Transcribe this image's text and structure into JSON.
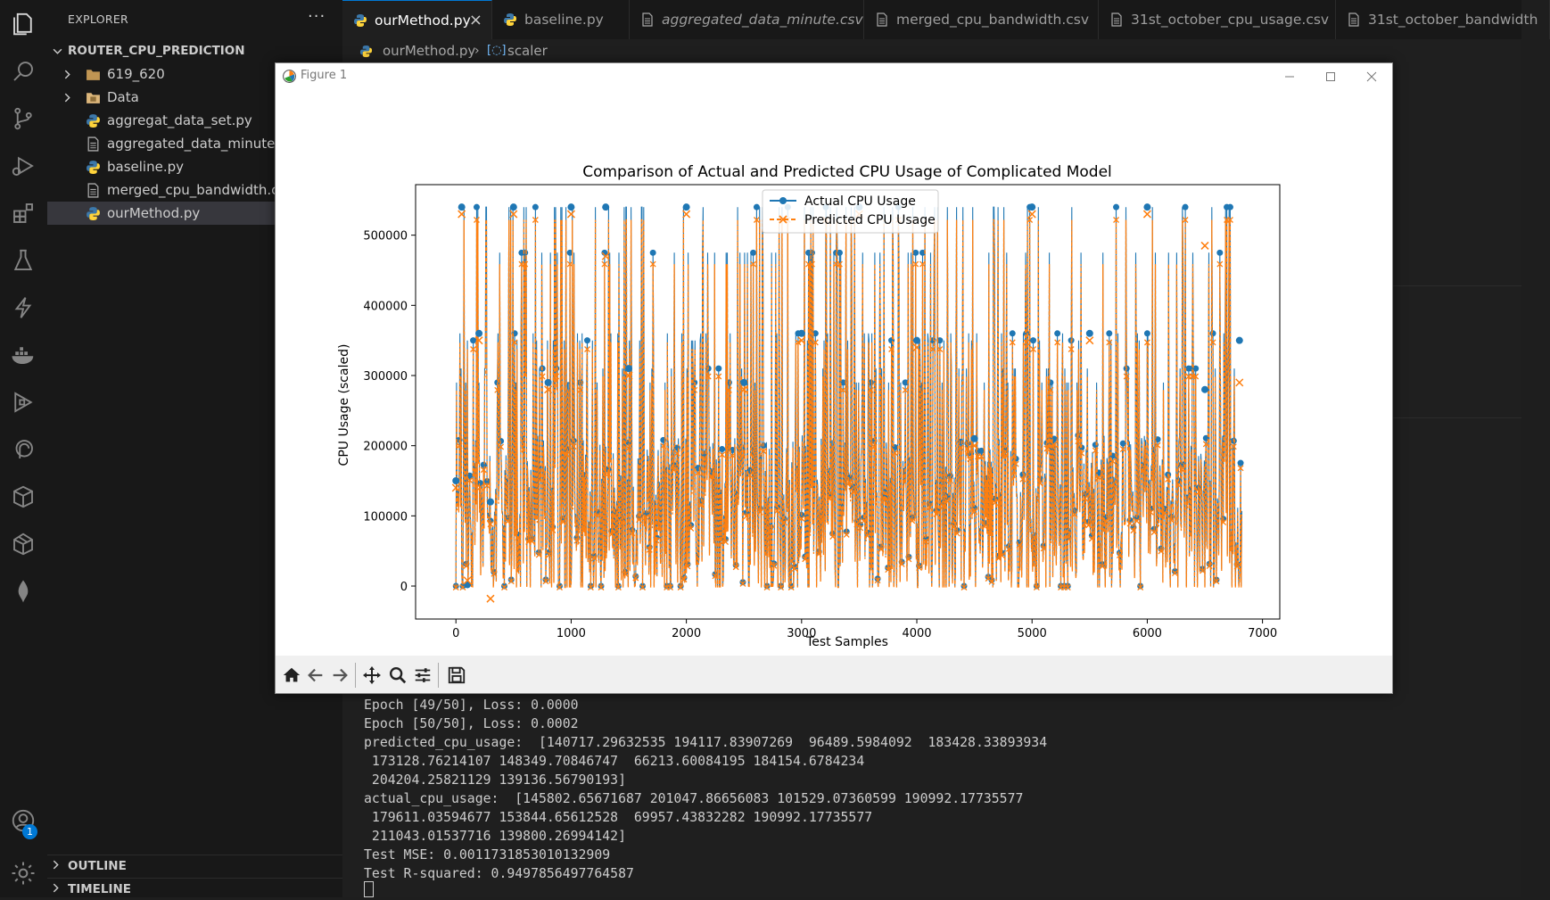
{
  "explorer": {
    "title": "EXPLORER",
    "more": "···",
    "project": "ROUTER_CPU_PREDICTION",
    "items": [
      {
        "label": "619_620",
        "kind": "folder"
      },
      {
        "label": "Data",
        "kind": "folder"
      },
      {
        "label": "aggregat_data_set.py",
        "kind": "python"
      },
      {
        "label": "aggregated_data_minute.csv",
        "kind": "file"
      },
      {
        "label": "baseline.py",
        "kind": "python"
      },
      {
        "label": "merged_cpu_bandwidth.csv",
        "kind": "file"
      },
      {
        "label": "ourMethod.py",
        "kind": "python"
      }
    ],
    "outline": "OUTLINE",
    "timeline": "TIMELINE"
  },
  "activity": {
    "badge": "1"
  },
  "tabs": [
    {
      "label": "ourMethod.py",
      "kind": "python",
      "active": true
    },
    {
      "label": "baseline.py",
      "kind": "python"
    },
    {
      "label": "aggregated_data_minute.csv",
      "kind": "file",
      "italic": true
    },
    {
      "label": "merged_cpu_bandwidth.csv",
      "kind": "file"
    },
    {
      "label": "31st_october_cpu_usage.csv",
      "kind": "file"
    },
    {
      "label": "31st_october_bandwidth",
      "kind": "file"
    }
  ],
  "breadcrumb": {
    "file": "ourMethod.py",
    "symbol": "scaler"
  },
  "terminal": {
    "lines": [
      "Epoch [49/50], Loss: 0.0000",
      "Epoch [50/50], Loss: 0.0002",
      "predicted_cpu_usage:  [140717.29632535 194117.83907269  96489.5984092  183428.33893934",
      " 173128.76214107 148349.70846747  66213.60084195 184154.6784234",
      " 204204.25821129 139136.56790193]",
      "actual_cpu_usage:  [145802.65671687 201047.86656083 101529.07360599 190992.17735577",
      " 179611.03594677 153844.65612528  69957.43832282 190992.17735577",
      " 211043.01537716 139800.26994142]",
      "Test MSE: 0.0011731853010132909",
      "Test R-squared: 0.9497856497764587"
    ]
  },
  "figure": {
    "window_title": "Figure 1"
  },
  "chart_data": {
    "type": "line",
    "title": "Comparison of Actual and Predicted CPU Usage of Complicated Model",
    "xlabel": "Test Samples",
    "ylabel": "CPU Usage (scaled)",
    "xlim": [
      -350,
      7150
    ],
    "ylim": [
      -47000,
      572000
    ],
    "xticks": [
      0,
      1000,
      2000,
      3000,
      4000,
      5000,
      6000,
      7000
    ],
    "yticks": [
      0,
      100000,
      200000,
      300000,
      400000,
      500000
    ],
    "legend_placement": "upper center",
    "grid": false,
    "n_samples": 6820,
    "series": [
      {
        "name": "Actual CPU Usage",
        "color": "#1f77b4",
        "marker": "o",
        "sample_x": [
          0,
          50,
          100,
          200,
          300,
          500,
          800,
          1000,
          1300,
          1500,
          2000,
          2500,
          3000,
          3500,
          4000,
          4500,
          5000,
          5500,
          6000,
          6500,
          6800
        ],
        "sample_y": [
          150000,
          540000,
          2000,
          360000,
          120000,
          540000,
          290000,
          540000,
          540000,
          310000,
          540000,
          290000,
          360000,
          540000,
          350000,
          210000,
          540000,
          360000,
          540000,
          280000,
          350000
        ]
      },
      {
        "name": "Predicted CPU Usage",
        "color": "#ff7f0e",
        "marker": "x",
        "sample_x": [
          0,
          50,
          100,
          200,
          300,
          500,
          800,
          1000,
          1300,
          1500,
          2000,
          2500,
          3000,
          3500,
          4000,
          4500,
          5000,
          5500,
          6000,
          6500,
          6800
        ],
        "sample_y": [
          140000,
          530000,
          8000,
          350000,
          -18000,
          530000,
          280000,
          530000,
          470000,
          300000,
          530000,
          280000,
          350000,
          530000,
          340000,
          200000,
          530000,
          350000,
          530000,
          485000,
          290000
        ]
      }
    ]
  }
}
